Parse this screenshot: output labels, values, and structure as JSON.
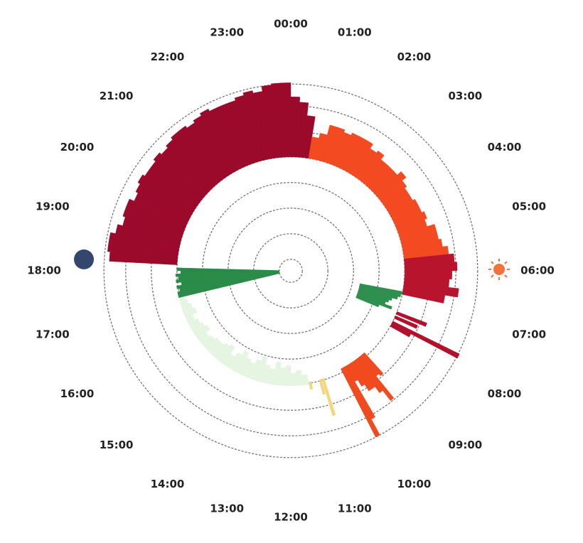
{
  "chart_data": {
    "type": "polar-bar",
    "categories": [
      "00:00",
      "01:00",
      "02:00",
      "03:00",
      "04:00",
      "05:00",
      "06:00",
      "07:00",
      "08:00",
      "09:00",
      "10:00",
      "11:00",
      "12:00",
      "13:00",
      "14:00",
      "15:00",
      "16:00",
      "17:00",
      "18:00",
      "19:00",
      "20:00",
      "21:00",
      "22:00",
      "23:00"
    ],
    "rlim": [
      0,
      7.4
    ],
    "rticks": [
      0.45,
      1.45,
      2.45,
      3.45,
      4.45,
      5.45,
      6.45,
      7.3
    ],
    "grid": true,
    "series": [
      {
        "color": "#9b0a2a",
        "base": 4.45,
        "width": 0.2,
        "x": [
          18.2,
          18.4,
          18.6,
          18.8,
          19.0,
          19.2,
          19.4,
          19.6,
          19.8,
          20.0,
          20.2,
          20.4,
          20.6,
          20.8,
          21.0,
          21.2,
          21.4,
          21.6,
          21.8,
          22.0,
          22.2,
          22.4,
          22.6,
          22.8,
          23.0,
          23.2,
          23.4,
          23.6,
          23.8,
          0.0,
          0.2,
          0.4
        ],
        "values": [
          7.1,
          7.2,
          7.2,
          7.0,
          6.8,
          6.9,
          6.9,
          6.7,
          6.8,
          6.9,
          6.8,
          6.8,
          6.9,
          6.8,
          6.9,
          7.0,
          7.0,
          6.9,
          7.0,
          7.1,
          7.0,
          7.0,
          7.0,
          7.1,
          7.2,
          7.1,
          7.3,
          7.35,
          7.35,
          6.8,
          6.6,
          6.1
        ]
      },
      {
        "color": "#f44a22",
        "base": 4.45,
        "width": 0.2,
        "x": [
          0.6,
          0.8,
          1.0,
          1.2,
          1.4,
          1.6,
          1.8,
          2.0,
          2.2,
          2.4,
          2.6,
          2.8,
          3.0,
          3.2,
          3.4,
          3.6,
          3.8,
          4.0,
          4.2,
          4.4,
          4.6,
          4.8,
          5.0,
          5.2,
          5.4
        ],
        "values": [
          5.3,
          5.5,
          5.9,
          5.9,
          5.8,
          5.9,
          5.9,
          5.9,
          5.7,
          5.8,
          5.6,
          5.6,
          5.6,
          5.8,
          5.6,
          5.5,
          5.5,
          5.6,
          5.6,
          5.7,
          5.6,
          5.9,
          5.9,
          6.0,
          6.2
        ]
      },
      {
        "color": "#b8142e",
        "base": 4.45,
        "width": 0.2,
        "x": [
          5.6,
          5.8,
          6.0,
          6.2,
          6.4,
          6.6
        ],
        "values": [
          6.4,
          6.5,
          6.3,
          6.2,
          6.6,
          6.1
        ]
      },
      {
        "color": "#2f8f4e",
        "base": 2.75,
        "width": 0.1,
        "x": [
          6.7,
          6.8,
          6.9,
          7.0,
          7.1,
          7.2,
          7.3,
          7.4
        ],
        "values": [
          4.45,
          4.4,
          4.3,
          4.1,
          4.0,
          3.9,
          4.2,
          3.7
        ]
      },
      {
        "color": "#b3102b",
        "base": 4.45,
        "width": 0.1,
        "x": [
          7.4,
          7.55,
          7.75,
          7.85
        ],
        "values": [
          5.7,
          5.4,
          7.35,
          5.3
        ]
      },
      {
        "color": "#f04a1e",
        "base": 4.3,
        "width": 0.1,
        "x": [
          9.2,
          9.3,
          9.4,
          9.5,
          9.6,
          9.7,
          9.8,
          9.9,
          10.0,
          10.1
        ],
        "values": [
          5.4,
          5.3,
          6.4,
          5.9,
          5.6,
          5.6,
          5.3,
          5.0,
          6.6,
          7.3
        ]
      },
      {
        "color": "#f6d67a",
        "base": 4.4,
        "width": 0.08,
        "x": [
          10.85,
          10.95,
          11.3
        ],
        "values": [
          5.9,
          5.0,
          4.7
        ]
      },
      {
        "color": "#e6f5e2",
        "base": 4.5,
        "width": 0.2,
        "x": [
          11.4,
          11.6,
          11.8,
          12.0,
          12.2,
          12.4,
          12.6,
          12.8,
          13.0,
          13.2,
          13.4,
          13.6,
          13.8,
          14.0,
          14.2,
          14.4,
          14.6,
          14.8,
          15.0,
          15.2,
          15.4,
          15.6,
          15.8,
          16.0,
          16.2,
          16.4,
          16.6,
          16.8,
          17.0
        ],
        "values": [
          4.1,
          3.9,
          4.0,
          3.7,
          3.8,
          3.6,
          3.9,
          3.8,
          3.5,
          3.7,
          3.9,
          3.8,
          3.6,
          3.8,
          4.0,
          3.7,
          3.8,
          3.9,
          3.9,
          4.0,
          4.1,
          3.9,
          4.0,
          4.1,
          4.2,
          4.0,
          4.1,
          4.2,
          4.3
        ]
      },
      {
        "color": "#2a8a48",
        "base": 0.45,
        "width": 0.1,
        "x": [
          17.1,
          17.2,
          17.3,
          17.4,
          17.5,
          17.6,
          17.7,
          17.8,
          17.9,
          18.0
        ],
        "values": [
          4.5,
          4.5,
          4.4,
          4.5,
          4.3,
          4.5,
          4.4,
          4.5,
          4.3,
          4.45
        ]
      }
    ]
  }
}
